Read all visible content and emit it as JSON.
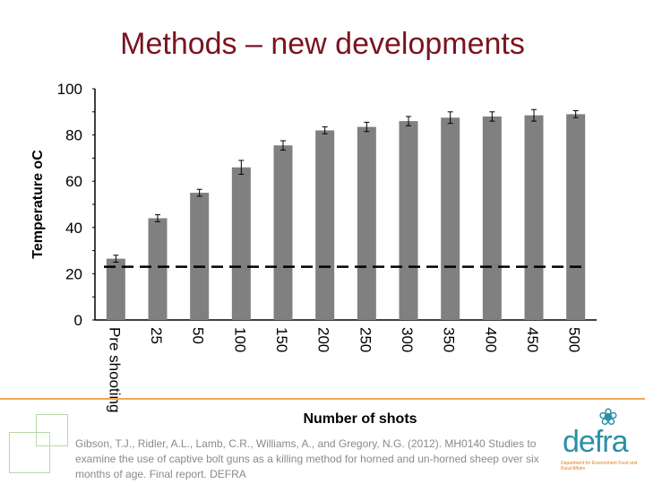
{
  "slide": {
    "title": "Methods – new developments",
    "citation": "Gibson, T.J., Ridler, A.L., Lamb, C.R., Williams, A., and Gregory, N.G. (2012). MH0140 Studies to examine the use of captive bolt guns as a killing method for horned and un-horned sheep over six months of age. Final report. DEFRA",
    "logo_text": "defra",
    "logo_subtext": "Department for Environment Food and Rural Affairs",
    "colors": {
      "title": "#7a1420",
      "bars": "#808080",
      "separator": "#f2a65a",
      "logo": "#2b8fa8"
    }
  },
  "chart_data": {
    "type": "bar",
    "title": "",
    "xlabel": "Number of shots",
    "ylabel": "Temperature oC",
    "categories": [
      "Pre shooting",
      "25",
      "50",
      "100",
      "150",
      "200",
      "250",
      "300",
      "350",
      "400",
      "450",
      "500"
    ],
    "values": [
      26.5,
      44,
      55,
      66,
      75.5,
      82,
      83.5,
      86,
      87.5,
      88,
      88.5,
      89
    ],
    "errors": [
      1.5,
      1.5,
      1.5,
      3,
      2,
      1.5,
      2,
      2,
      2.5,
      2,
      2.5,
      1.5
    ],
    "ylim": [
      0,
      100
    ],
    "yticks": [
      0,
      20,
      40,
      60,
      80,
      100
    ],
    "reference_line": {
      "value": 23,
      "style": "dashed"
    },
    "grid": false,
    "legend": "none"
  }
}
